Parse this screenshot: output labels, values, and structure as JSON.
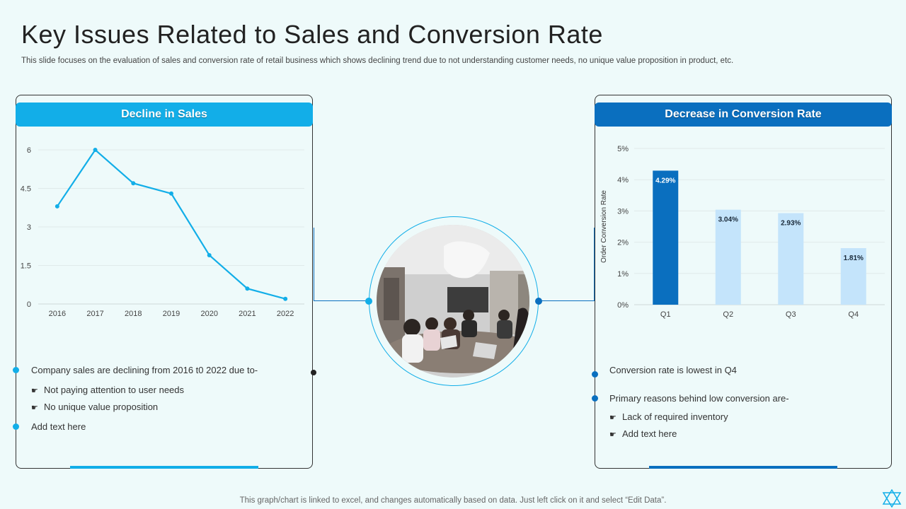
{
  "page": {
    "title": "Key Issues Related to Sales and Conversion Rate",
    "subtitle": "This slide focuses on the evaluation of sales and conversion rate of retail business which shows declining trend due to not understanding customer needs, no unique value proposition in product, etc.",
    "footer": "This graph/chart is linked to excel,  and changes automatically based on data. Just left click on it and select “Edit Data”."
  },
  "colors": {
    "light_blue": "#12aee8",
    "dark_blue": "#0a6fbf",
    "pale_bar": "#c4e4fb",
    "background": "#eefafa"
  },
  "left_panel": {
    "header": "Decline in Sales",
    "bullet1": "Company sales are declining from 2016 t0 2022 due to-",
    "sub1": "Not paying attention to user needs",
    "sub2": "No unique value  proposition",
    "bullet2": "Add text here"
  },
  "right_panel": {
    "header": "Decrease in Conversion Rate",
    "bullet1": "Conversion  rate is lowest in Q4",
    "bullet2": "Primary reasons behind  low conversion  are-",
    "sub1": "Lack of required  inventory",
    "sub2": "Add text here"
  },
  "icons": {
    "sub_bullet": "pointing-hand-icon",
    "corner": "star-of-david-icon"
  },
  "chart_data": [
    {
      "type": "line",
      "title": "Decline in Sales",
      "categories": [
        "2016",
        "2017",
        "2018",
        "2019",
        "2020",
        "2021",
        "2022"
      ],
      "values": [
        3.8,
        6.0,
        4.7,
        4.3,
        1.9,
        0.6,
        0.2
      ],
      "ylim": [
        0,
        6
      ],
      "yticks": [
        "0",
        "1.5",
        "3",
        "4.5",
        "6"
      ],
      "xlabel": "",
      "ylabel": "",
      "grid": true
    },
    {
      "type": "bar",
      "title": "Decrease in Conversion Rate",
      "categories": [
        "Q1",
        "Q2",
        "Q3",
        "Q4"
      ],
      "values": [
        4.29,
        3.04,
        2.93,
        1.81
      ],
      "labels": [
        "4.29%",
        "3.04%",
        "2.93%",
        "1.81%"
      ],
      "ylim": [
        0,
        5
      ],
      "yticks": [
        "0%",
        "1%",
        "2%",
        "3%",
        "4%",
        "5%"
      ],
      "xlabel": "",
      "ylabel": "Order Conversion Rate",
      "grid": true
    }
  ]
}
